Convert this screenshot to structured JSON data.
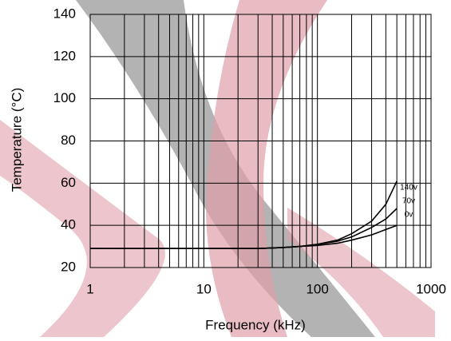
{
  "chart_data": {
    "type": "line",
    "x_label": "Frequency (kHz)",
    "y_label": "Temperature (°C)",
    "x": [
      1,
      2,
      5,
      10,
      20,
      30,
      50,
      70,
      100,
      150,
      200,
      300,
      400,
      500
    ],
    "series": [
      {
        "name": "140v",
        "color": "#000000",
        "values": [
          29,
          29,
          29,
          29,
          29,
          29,
          29.5,
          30,
          31,
          33,
          36,
          42,
          50,
          61
        ]
      },
      {
        "name": "70v",
        "color": "#000000",
        "values": [
          29,
          29,
          29,
          29,
          29,
          29,
          29.5,
          30,
          31,
          32.5,
          34.5,
          39,
          43,
          48
        ]
      },
      {
        "name": "0v",
        "color": "#000000",
        "values": [
          29,
          29,
          29,
          29,
          29,
          29,
          29.5,
          30,
          30.5,
          31.5,
          33,
          35.5,
          38,
          40
        ]
      }
    ],
    "xlim": [
      1,
      1000
    ],
    "xticks": [
      1,
      10,
      100,
      1000
    ],
    "x_log": true,
    "ylim": [
      20,
      140
    ],
    "yticks": [
      20,
      40,
      60,
      80,
      100,
      120,
      140
    ],
    "grid": true
  }
}
